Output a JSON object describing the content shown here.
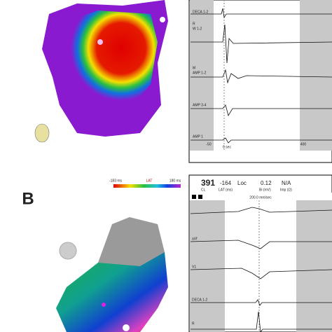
{
  "panel_a": {
    "channels": [
      "DECA 1-2",
      "R",
      "W 1-2",
      "M",
      "AMP 1-2",
      "AMP 3-4",
      "AMP 1"
    ],
    "time_axis": [
      "-50",
      "0 sec",
      "400"
    ]
  },
  "panel_b": {
    "label": "B",
    "color_bar": {
      "min": "-183 ms",
      "title": "LAT",
      "max": "180 ms"
    },
    "readout": {
      "values": [
        "391",
        "-164",
        "Loc",
        "0.12",
        "N/A"
      ],
      "labels": [
        "CL",
        "LAT (ms)",
        "Bi (mV)",
        "Imp (Ω)"
      ]
    },
    "sweep_speed": "200.0 mm/sec",
    "channels": [
      "aVf",
      "V1",
      "DECA 1-2",
      "R"
    ]
  }
}
